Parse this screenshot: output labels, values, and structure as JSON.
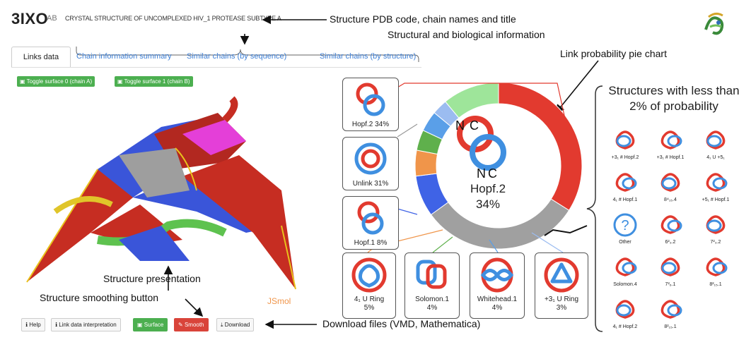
{
  "header": {
    "pdb_code": "3IXO",
    "chains": "AB",
    "title": "Crystal structure of uncomplexed HIV_1 protease subtype A"
  },
  "annotations": {
    "pdb_title": "Structure PDB code, chain names and title",
    "structural_info": "Structural and biological information",
    "pie_chart": "Link probability pie chart",
    "less_than_2": "Structures with less than 2% of probability",
    "structure_presentation": "Structure presentation",
    "smoothing_button": "Structure smoothing button",
    "download_files": "Download files (VMD, Mathematica)"
  },
  "tabs": [
    {
      "label": "Links data"
    },
    {
      "label": "Chain information summary"
    },
    {
      "label": "Similar chains (by sequence)"
    },
    {
      "label": "Similar chains (by structure)"
    }
  ],
  "toggles": {
    "surface0": "Toggle surface 0 (chain A)",
    "surface1": "Toggle surface 1 (chain B)"
  },
  "bottom_buttons": {
    "help": "Help",
    "link_data": "Link data interpretation",
    "surface": "Surface",
    "smooth": "Smooth",
    "download": "Download"
  },
  "viewer": {
    "watermark": "JSmol"
  },
  "pie": {
    "center_label": "Hopf.2",
    "center_pct": "34%",
    "center_n": "N",
    "center_c": "C"
  },
  "link_boxes": [
    {
      "name": "Hopf.2",
      "pct": "34%"
    },
    {
      "name": "Unlink",
      "pct": "31%"
    },
    {
      "name": "Hopf.1",
      "pct": "8%"
    },
    {
      "name": "4₁ U Ring",
      "pct": "5%"
    },
    {
      "name": "Solomon.1",
      "pct": "4%"
    },
    {
      "name": "Whitehead.1",
      "pct": "4%"
    },
    {
      "name": "+3₁ U Ring",
      "pct": "3%"
    }
  ],
  "small_structures": [
    "+3₁ # Hopf.2",
    "+3₁ # Hopf.1",
    "4₁ U +5₁",
    "4₁ # Hopf.1",
    "8⁴₁₅.4",
    "+5₁ # Hopf.1",
    "Other",
    "6²₃.2",
    "7²₃.2",
    "Solomon.4",
    "7²₆.1",
    "8²₁₅.1",
    "4₁ # Hopf.2",
    "8²₁₅.1"
  ],
  "chart_data": {
    "type": "pie",
    "categories": [
      "Hopf.2",
      "Unlink",
      "Hopf.1",
      "4₁ U Ring",
      "Solomon.1",
      "Whitehead.1",
      "+3₁ U Ring",
      "Other"
    ],
    "values": [
      34,
      31,
      8,
      5,
      4,
      4,
      3,
      11
    ],
    "colors": [
      "#e23a2f",
      "#a0a0a0",
      "#3f63e6",
      "#f0954a",
      "#5fb04c",
      "#5a9fe8",
      "#9bbcf0",
      "#9ee59a"
    ]
  },
  "colors": {
    "red": "#e23a2f",
    "blue": "#3f8fe0",
    "green": "#4caf50",
    "smooth_red": "#d9443a"
  }
}
